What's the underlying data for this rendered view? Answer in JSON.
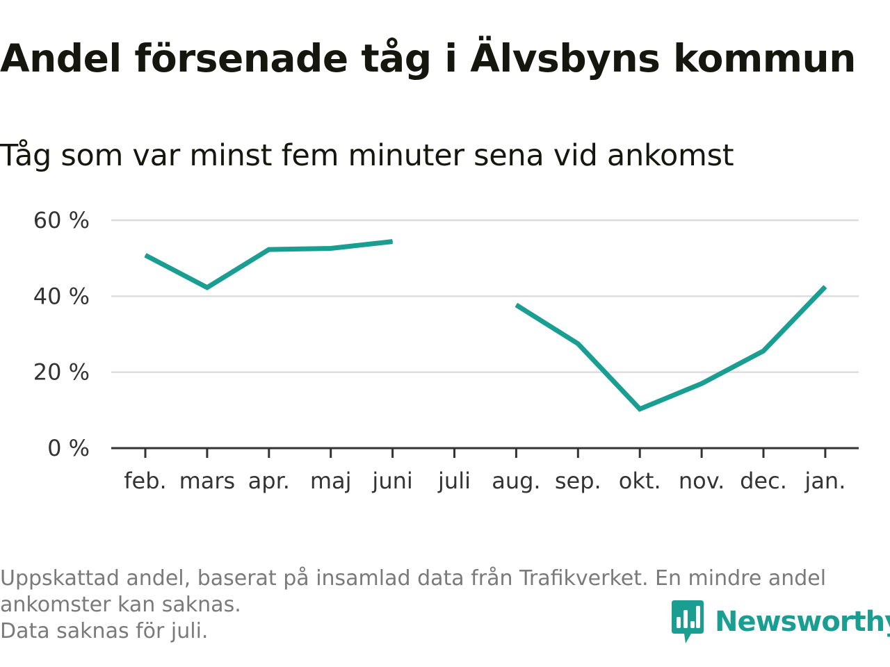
{
  "title": "Andel försenade tåg i Älvsbyns kommun",
  "subtitle": "Tåg som var minst fem minuter sena vid ankomst",
  "colors": {
    "line": "#1a9e92",
    "grid": "#dddddd",
    "axis": "#333333",
    "brand": "#1a9e92"
  },
  "chart_data": {
    "type": "line",
    "categories": [
      "feb.",
      "mars",
      "apr.",
      "maj",
      "juni",
      "juli",
      "aug.",
      "sep.",
      "okt.",
      "nov.",
      "dec.",
      "jan."
    ],
    "series": [
      {
        "values": [
          50.8,
          42.3,
          52.3,
          52.6,
          54.4,
          null,
          37.7,
          27.5,
          10.3,
          17.0,
          25.6,
          42.5
        ]
      }
    ],
    "yticks": [
      "0 %",
      "20 %",
      "40 %",
      "60 %"
    ],
    "ylim": [
      0,
      60
    ],
    "grid": true,
    "legend": "none",
    "xlabel": "",
    "ylabel": ""
  },
  "footnotes": [
    "Uppskattad andel, baserat på insamlad data från Trafikverket. En mindre andel",
    "ankomster kan saknas.",
    "Data saknas för juli."
  ],
  "brand": {
    "name": "Newsworthy",
    "icon": "newsworthy-logo-icon"
  }
}
